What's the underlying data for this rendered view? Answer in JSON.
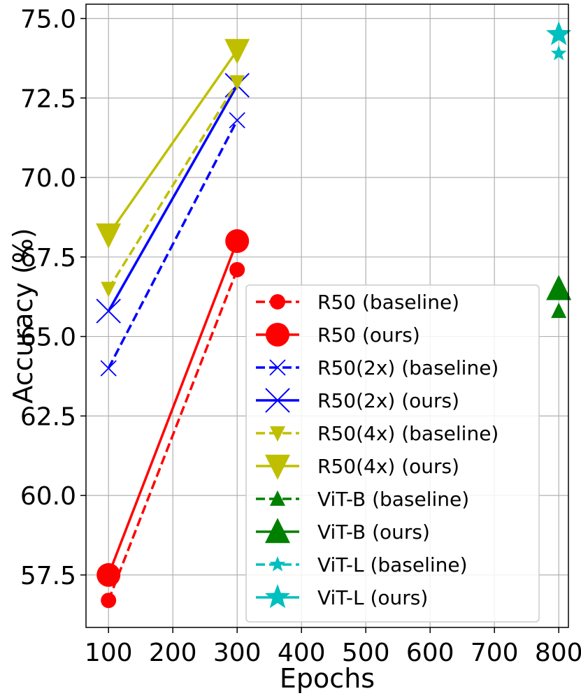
{
  "chart_data": {
    "type": "line",
    "title": "",
    "xlabel": "Epochs",
    "ylabel": "Accuracy (%)",
    "xlim": [
      65,
      815
    ],
    "ylim": [
      55.85,
      75.45
    ],
    "xticks": [
      100,
      200,
      300,
      400,
      500,
      600,
      700,
      800
    ],
    "yticks": [
      57.5,
      60.0,
      62.5,
      65.0,
      67.5,
      70.0,
      72.5,
      75.0
    ],
    "xtick_labels": [
      "100",
      "200",
      "300",
      "400",
      "500",
      "600",
      "700",
      "800"
    ],
    "ytick_labels": [
      "57.5",
      "60.0",
      "62.5",
      "65.0",
      "67.5",
      "70.0",
      "72.5",
      "75.0"
    ],
    "grid": true,
    "legend_position": "lower-right",
    "series": [
      {
        "name": "R50 (baseline)",
        "color": "#ff0000",
        "dash": "dashed",
        "marker": "circle",
        "marker_size": "small",
        "x": [
          100,
          300
        ],
        "y": [
          56.7,
          67.1
        ]
      },
      {
        "name": "R50 (ours)",
        "color": "#ff0000",
        "dash": "solid",
        "marker": "circle",
        "marker_size": "large",
        "x": [
          100,
          300
        ],
        "y": [
          57.5,
          68.0
        ]
      },
      {
        "name": "R50(2x) (baseline)",
        "color": "#0000ff",
        "dash": "dashed",
        "marker": "x",
        "marker_size": "small",
        "x": [
          100,
          300
        ],
        "y": [
          64.0,
          71.8
        ]
      },
      {
        "name": "R50(2x) (ours)",
        "color": "#0000ff",
        "dash": "solid",
        "marker": "x",
        "marker_size": "large",
        "x": [
          100,
          300
        ],
        "y": [
          65.8,
          72.9
        ]
      },
      {
        "name": "R50(4x) (baseline)",
        "color": "#bfbf00",
        "dash": "dashed",
        "marker": "triangle-down",
        "marker_size": "small",
        "x": [
          100,
          300
        ],
        "y": [
          66.5,
          73.0
        ]
      },
      {
        "name": "R50(4x) (ours)",
        "color": "#bfbf00",
        "dash": "solid",
        "marker": "triangle-down",
        "marker_size": "large",
        "x": [
          100,
          300
        ],
        "y": [
          68.2,
          74.0
        ]
      },
      {
        "name": "ViT-B (baseline)",
        "color": "#008000",
        "dash": "dashed",
        "marker": "triangle-up",
        "marker_size": "small",
        "x": [
          800
        ],
        "y": [
          65.8
        ]
      },
      {
        "name": "ViT-B (ours)",
        "color": "#008000",
        "dash": "solid",
        "marker": "triangle-up",
        "marker_size": "large",
        "x": [
          800
        ],
        "y": [
          66.5
        ]
      },
      {
        "name": "ViT-L (baseline)",
        "color": "#00bfbf",
        "dash": "dashed",
        "marker": "star",
        "marker_size": "small",
        "x": [
          800
        ],
        "y": [
          73.9
        ]
      },
      {
        "name": "ViT-L (ours)",
        "color": "#00bfbf",
        "dash": "solid",
        "marker": "star",
        "marker_size": "large",
        "x": [
          800
        ],
        "y": [
          74.5
        ]
      }
    ]
  }
}
